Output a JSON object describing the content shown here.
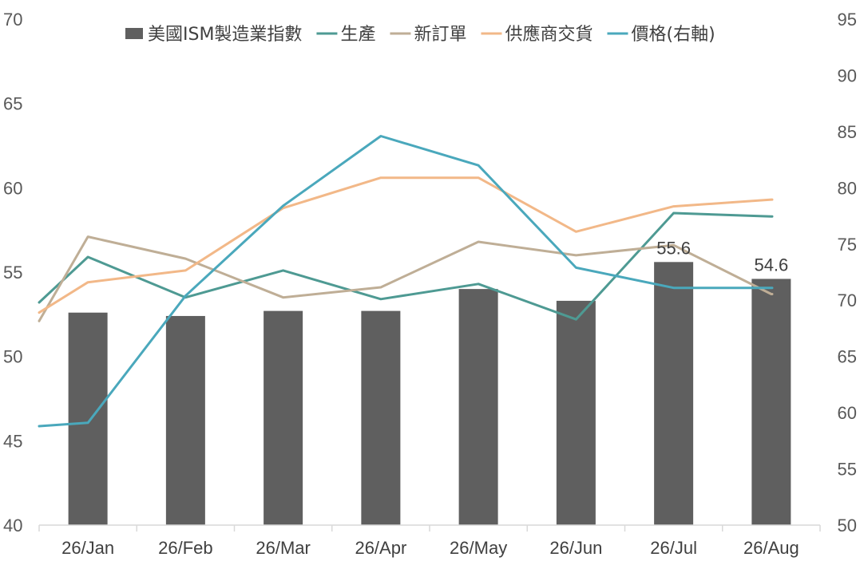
{
  "chart_data": {
    "type": "bar",
    "categories": [
      "26/Jan",
      "26/Feb",
      "26/Mar",
      "26/Apr",
      "26/May",
      "26/Jun",
      "26/Jul",
      "26/Aug"
    ],
    "ylim": [
      40,
      70
    ],
    "y_ticks": [
      40,
      45,
      50,
      55,
      60,
      65,
      70
    ],
    "y2lim": [
      50,
      95
    ],
    "y2_ticks": [
      50,
      55,
      60,
      65,
      70,
      75,
      80,
      85,
      90,
      95
    ],
    "legend_position": "top",
    "grid": false,
    "series": [
      {
        "name": "美國ISM製造業指數",
        "type": "bar",
        "axis": "left",
        "color": "#5f5f5f",
        "values": [
          52.6,
          52.4,
          52.7,
          52.7,
          54.0,
          53.3,
          55.6,
          54.6
        ],
        "data_labels": [
          null,
          null,
          null,
          null,
          null,
          null,
          "55.6",
          "54.6"
        ]
      },
      {
        "name": "生產",
        "type": "line",
        "axis": "left",
        "color": "#4e9a93",
        "start": 53.2,
        "values": [
          55.9,
          53.5,
          55.1,
          53.4,
          54.3,
          52.2,
          58.5,
          58.3
        ],
        "end": 58.3
      },
      {
        "name": "新訂單",
        "type": "line",
        "axis": "left",
        "color": "#bfae96",
        "start": 52.1,
        "values": [
          57.1,
          55.8,
          53.5,
          54.1,
          56.8,
          56.0,
          56.6,
          53.7
        ],
        "end": 53.7
      },
      {
        "name": "供應商交貨",
        "type": "line",
        "axis": "left",
        "color": "#f2b888",
        "start": 52.6,
        "values": [
          54.4,
          55.1,
          58.8,
          60.6,
          60.6,
          57.4,
          58.9,
          59.3
        ],
        "end": 59.3
      },
      {
        "name": "價格(右軸)",
        "type": "line",
        "axis": "right",
        "color": "#4aa8bc",
        "start": 58.8,
        "values": [
          59.1,
          70.4,
          78.4,
          84.6,
          82.0,
          72.9,
          71.1,
          71.1
        ],
        "end": 71.1
      }
    ]
  }
}
